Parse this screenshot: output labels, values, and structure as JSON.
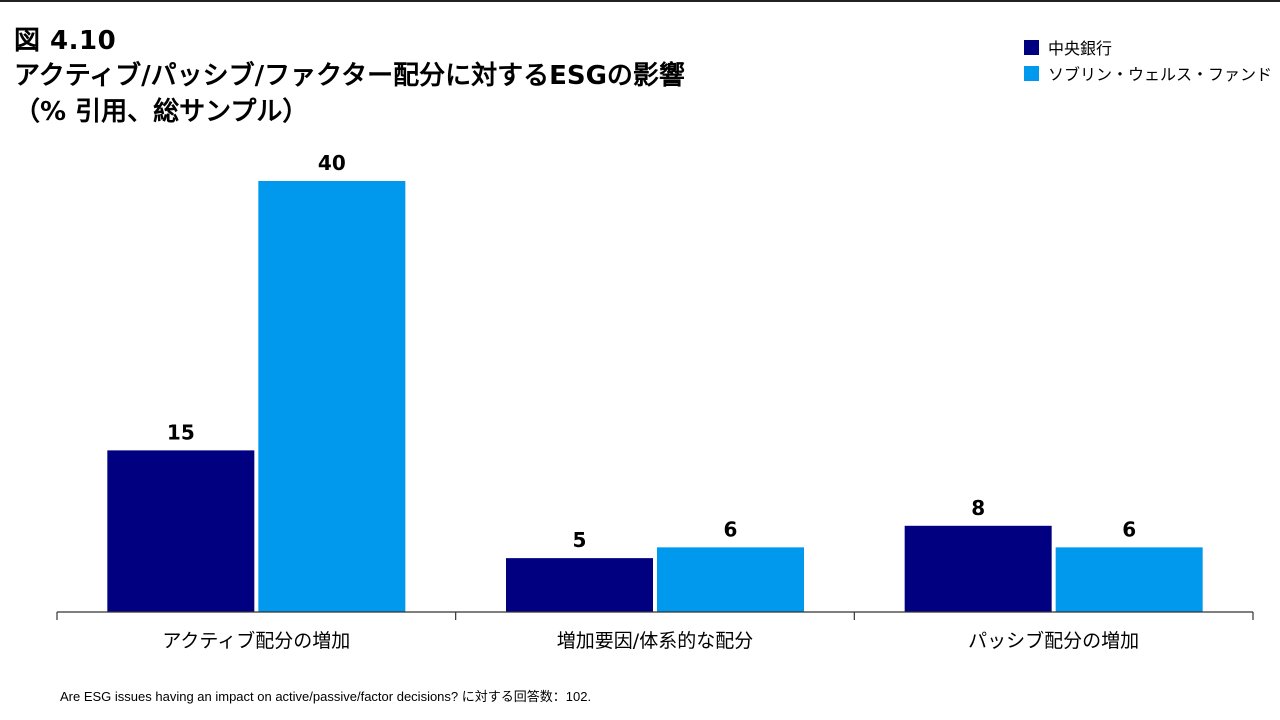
{
  "figure": {
    "label": "図 4.10",
    "title_line1": "アクティブ/パッシブ/ファクター配分に対するESGの影響",
    "title_line2": "（% 引用、総サンプル）"
  },
  "legend": [
    {
      "label": "中央銀行",
      "color": "#000080"
    },
    {
      "label": "ソブリン・ウェルス・ファンド",
      "color": "#0099ee"
    }
  ],
  "chart_data": {
    "type": "bar",
    "categories": [
      "アクティブ配分の増加",
      "増加要因/体系的な配分",
      "パッシブ配分の増加"
    ],
    "series": [
      {
        "name": "中央銀行",
        "values": [
          15,
          5,
          8
        ],
        "color": "#000080"
      },
      {
        "name": "ソブリン・ウェルス・ファンド",
        "values": [
          40,
          6,
          6
        ],
        "color": "#0099ee"
      }
    ],
    "title": "アクティブ/パッシブ/ファクター配分に対するESGの影響",
    "ylim": [
      0,
      40
    ],
    "data_labels": true,
    "grid": false,
    "legend_position": "top-right"
  },
  "footnote": "Are ESG issues having an impact on active/passive/factor decisions? に対する回答数：102."
}
